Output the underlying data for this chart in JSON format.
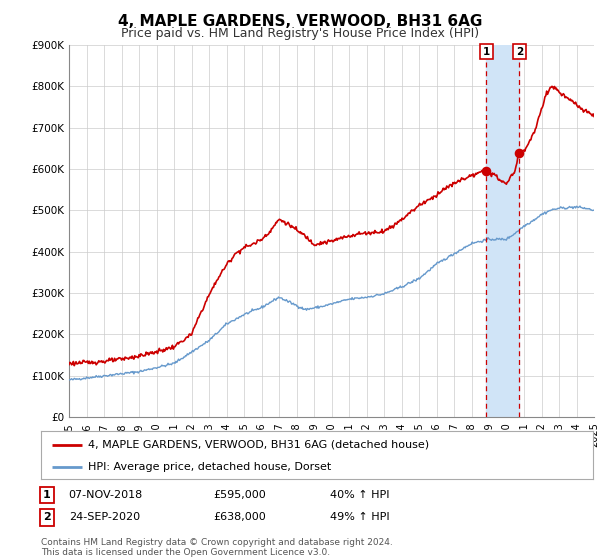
{
  "title": "4, MAPLE GARDENS, VERWOOD, BH31 6AG",
  "subtitle": "Price paid vs. HM Land Registry's House Price Index (HPI)",
  "legend_label_1": "4, MAPLE GARDENS, VERWOOD, BH31 6AG (detached house)",
  "legend_label_2": "HPI: Average price, detached house, Dorset",
  "footnote": "Contains HM Land Registry data © Crown copyright and database right 2024.\nThis data is licensed under the Open Government Licence v3.0.",
  "annotation_1_label": "1",
  "annotation_1_date": "07-NOV-2018",
  "annotation_1_price": "£595,000",
  "annotation_1_hpi": "40% ↑ HPI",
  "annotation_2_label": "2",
  "annotation_2_date": "24-SEP-2020",
  "annotation_2_price": "£638,000",
  "annotation_2_hpi": "49% ↑ HPI",
  "sale1_x": 2018.85,
  "sale1_y": 595000,
  "sale2_x": 2020.73,
  "sale2_y": 638000,
  "vline1_x": 2018.85,
  "vline2_x": 2020.73,
  "shade_color": "#d0e4f7",
  "vline_color": "#cc0000",
  "red_line_color": "#cc0000",
  "blue_line_color": "#6699cc",
  "dot_color": "#cc0000",
  "background_color": "#ffffff",
  "grid_color": "#cccccc",
  "ylim": [
    0,
    900000
  ],
  "xlim": [
    1995,
    2025
  ],
  "yticks": [
    0,
    100000,
    200000,
    300000,
    400000,
    500000,
    600000,
    700000,
    800000,
    900000
  ],
  "ytick_labels": [
    "£0",
    "£100K",
    "£200K",
    "£300K",
    "£400K",
    "£500K",
    "£600K",
    "£700K",
    "£800K",
    "£900K"
  ],
  "xticks": [
    1995,
    1996,
    1997,
    1998,
    1999,
    2000,
    2001,
    2002,
    2003,
    2004,
    2005,
    2006,
    2007,
    2008,
    2009,
    2010,
    2011,
    2012,
    2013,
    2014,
    2015,
    2016,
    2017,
    2018,
    2019,
    2020,
    2021,
    2022,
    2023,
    2024,
    2025
  ],
  "title_fontsize": 11,
  "subtitle_fontsize": 9,
  "tick_fontsize": 7.5,
  "legend_fontsize": 8,
  "annotation_fontsize": 8,
  "footnote_fontsize": 6.5
}
